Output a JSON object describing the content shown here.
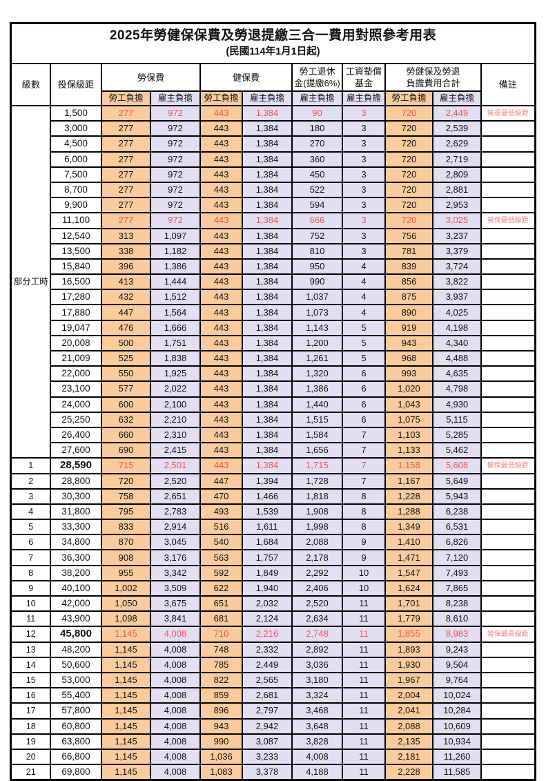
{
  "title": "2025年勞健保保費及勞退提繳三合一費用對照參考用表",
  "subtitle": "(民國114年1月1日起)",
  "colors": {
    "employee_share_fill": "#f9cb9d",
    "employer_share_fill": "#e2dff2",
    "highlight_value_red": "#f5524e",
    "note_red": "#f8817b",
    "border": "#000000"
  },
  "header": {
    "level": "級數",
    "bracket": "投保級距",
    "labor": "勞保費",
    "health": "健保費",
    "pension": "勞工退休\n金(提繳6%)",
    "wage_fund": "工資墊償\n基金",
    "total": "勞健保及勞退\n負擔費用合計",
    "note": "備註",
    "employee_share": "勞工負擔",
    "employer_share": "雇主負擔"
  },
  "part_time_label": "部分工時",
  "part_time_row_span": 23,
  "rows": [
    {
      "level": "",
      "bracket": "1,500",
      "values": [
        "277",
        "972",
        "443",
        "1,384",
        "90",
        "3",
        "720",
        "2,449"
      ],
      "note": "勞退最低級距",
      "red": true,
      "bold": false
    },
    {
      "level": "",
      "bracket": "3,000",
      "values": [
        "277",
        "972",
        "443",
        "1,384",
        "180",
        "3",
        "720",
        "2,539"
      ],
      "note": "",
      "red": false,
      "bold": false
    },
    {
      "level": "",
      "bracket": "4,500",
      "values": [
        "277",
        "972",
        "443",
        "1,384",
        "270",
        "3",
        "720",
        "2,629"
      ],
      "note": "",
      "red": false,
      "bold": false
    },
    {
      "level": "",
      "bracket": "6,000",
      "values": [
        "277",
        "972",
        "443",
        "1,384",
        "360",
        "3",
        "720",
        "2,719"
      ],
      "note": "",
      "red": false,
      "bold": false
    },
    {
      "level": "",
      "bracket": "7,500",
      "values": [
        "277",
        "972",
        "443",
        "1,384",
        "450",
        "3",
        "720",
        "2,809"
      ],
      "note": "",
      "red": false,
      "bold": false
    },
    {
      "level": "",
      "bracket": "8,700",
      "values": [
        "277",
        "972",
        "443",
        "1,384",
        "522",
        "3",
        "720",
        "2,881"
      ],
      "note": "",
      "red": false,
      "bold": false
    },
    {
      "level": "",
      "bracket": "9,900",
      "values": [
        "277",
        "972",
        "443",
        "1,384",
        "594",
        "3",
        "720",
        "2,953"
      ],
      "note": "",
      "red": false,
      "bold": false
    },
    {
      "level": "",
      "bracket": "11,100",
      "values": [
        "277",
        "972",
        "443",
        "1,384",
        "666",
        "3",
        "720",
        "3,025"
      ],
      "note": "勞保最低級距",
      "red": true,
      "bold": false
    },
    {
      "level": "",
      "bracket": "12,540",
      "values": [
        "313",
        "1,097",
        "443",
        "1,384",
        "752",
        "3",
        "756",
        "3,237"
      ],
      "note": "",
      "red": false,
      "bold": false
    },
    {
      "level": "",
      "bracket": "13,500",
      "values": [
        "338",
        "1,182",
        "443",
        "1,384",
        "810",
        "3",
        "781",
        "3,379"
      ],
      "note": "",
      "red": false,
      "bold": false
    },
    {
      "level": "",
      "bracket": "15,840",
      "values": [
        "396",
        "1,386",
        "443",
        "1,384",
        "950",
        "4",
        "839",
        "3,724"
      ],
      "note": "",
      "red": false,
      "bold": false
    },
    {
      "level": "",
      "bracket": "16,500",
      "values": [
        "413",
        "1,444",
        "443",
        "1,384",
        "990",
        "4",
        "856",
        "3,822"
      ],
      "note": "",
      "red": false,
      "bold": false
    },
    {
      "level": "",
      "bracket": "17,280",
      "values": [
        "432",
        "1,512",
        "443",
        "1,384",
        "1,037",
        "4",
        "875",
        "3,937"
      ],
      "note": "",
      "red": false,
      "bold": false
    },
    {
      "level": "",
      "bracket": "17,880",
      "values": [
        "447",
        "1,564",
        "443",
        "1,384",
        "1,073",
        "4",
        "890",
        "4,025"
      ],
      "note": "",
      "red": false,
      "bold": false
    },
    {
      "level": "",
      "bracket": "19,047",
      "values": [
        "476",
        "1,666",
        "443",
        "1,384",
        "1,143",
        "5",
        "919",
        "4,198"
      ],
      "note": "",
      "red": false,
      "bold": false
    },
    {
      "level": "",
      "bracket": "20,008",
      "values": [
        "500",
        "1,751",
        "443",
        "1,384",
        "1,200",
        "5",
        "943",
        "4,340"
      ],
      "note": "",
      "red": false,
      "bold": false
    },
    {
      "level": "",
      "bracket": "21,009",
      "values": [
        "525",
        "1,838",
        "443",
        "1,384",
        "1,261",
        "5",
        "968",
        "4,488"
      ],
      "note": "",
      "red": false,
      "bold": false
    },
    {
      "level": "",
      "bracket": "22,000",
      "values": [
        "550",
        "1,925",
        "443",
        "1,384",
        "1,320",
        "6",
        "993",
        "4,635"
      ],
      "note": "",
      "red": false,
      "bold": false
    },
    {
      "level": "",
      "bracket": "23,100",
      "values": [
        "577",
        "2,022",
        "443",
        "1,384",
        "1,386",
        "6",
        "1,020",
        "4,798"
      ],
      "note": "",
      "red": false,
      "bold": false
    },
    {
      "level": "",
      "bracket": "24,000",
      "values": [
        "600",
        "2,100",
        "443",
        "1,384",
        "1,440",
        "6",
        "1,043",
        "4,930"
      ],
      "note": "",
      "red": false,
      "bold": false
    },
    {
      "level": "",
      "bracket": "25,250",
      "values": [
        "632",
        "2,210",
        "443",
        "1,384",
        "1,515",
        "6",
        "1,075",
        "5,115"
      ],
      "note": "",
      "red": false,
      "bold": false
    },
    {
      "level": "",
      "bracket": "26,400",
      "values": [
        "660",
        "2,310",
        "443",
        "1,384",
        "1,584",
        "7",
        "1,103",
        "5,285"
      ],
      "note": "",
      "red": false,
      "bold": false
    },
    {
      "level": "",
      "bracket": "27,600",
      "values": [
        "690",
        "2,415",
        "443",
        "1,384",
        "1,656",
        "7",
        "1,133",
        "5,462"
      ],
      "note": "",
      "red": false,
      "bold": false
    },
    {
      "level": "1",
      "bracket": "28,590",
      "values": [
        "715",
        "2,501",
        "443",
        "1,384",
        "1,715",
        "7",
        "1,158",
        "5,608"
      ],
      "note": "健保最低級距",
      "red": true,
      "bold": true
    },
    {
      "level": "2",
      "bracket": "28,800",
      "values": [
        "720",
        "2,520",
        "447",
        "1,394",
        "1,728",
        "7",
        "1,167",
        "5,649"
      ],
      "note": "",
      "red": false,
      "bold": false
    },
    {
      "level": "3",
      "bracket": "30,300",
      "values": [
        "758",
        "2,651",
        "470",
        "1,466",
        "1,818",
        "8",
        "1,228",
        "5,943"
      ],
      "note": "",
      "red": false,
      "bold": false
    },
    {
      "level": "4",
      "bracket": "31,800",
      "values": [
        "795",
        "2,783",
        "493",
        "1,539",
        "1,908",
        "8",
        "1,288",
        "6,238"
      ],
      "note": "",
      "red": false,
      "bold": false
    },
    {
      "level": "5",
      "bracket": "33,300",
      "values": [
        "833",
        "2,914",
        "516",
        "1,611",
        "1,998",
        "8",
        "1,349",
        "6,531"
      ],
      "note": "",
      "red": false,
      "bold": false
    },
    {
      "level": "6",
      "bracket": "34,800",
      "values": [
        "870",
        "3,045",
        "540",
        "1,684",
        "2,088",
        "9",
        "1,410",
        "6,826"
      ],
      "note": "",
      "red": false,
      "bold": false
    },
    {
      "level": "7",
      "bracket": "36,300",
      "values": [
        "908",
        "3,176",
        "563",
        "1,757",
        "2,178",
        "9",
        "1,471",
        "7,120"
      ],
      "note": "",
      "red": false,
      "bold": false
    },
    {
      "level": "8",
      "bracket": "38,200",
      "values": [
        "955",
        "3,342",
        "592",
        "1,849",
        "2,292",
        "10",
        "1,547",
        "7,493"
      ],
      "note": "",
      "red": false,
      "bold": false
    },
    {
      "level": "9",
      "bracket": "40,100",
      "values": [
        "1,002",
        "3,509",
        "622",
        "1,940",
        "2,406",
        "10",
        "1,624",
        "7,865"
      ],
      "note": "",
      "red": false,
      "bold": false
    },
    {
      "level": "10",
      "bracket": "42,000",
      "values": [
        "1,050",
        "3,675",
        "651",
        "2,032",
        "2,520",
        "11",
        "1,701",
        "8,238"
      ],
      "note": "",
      "red": false,
      "bold": false
    },
    {
      "level": "11",
      "bracket": "43,900",
      "values": [
        "1,098",
        "3,841",
        "681",
        "2,124",
        "2,634",
        "11",
        "1,779",
        "8,610"
      ],
      "note": "",
      "red": false,
      "bold": false
    },
    {
      "level": "12",
      "bracket": "45,800",
      "values": [
        "1,145",
        "4,008",
        "710",
        "2,216",
        "2,748",
        "11",
        "1,855",
        "8,983"
      ],
      "note": "勞保最高級距",
      "red": true,
      "bold": true
    },
    {
      "level": "13",
      "bracket": "48,200",
      "values": [
        "1,145",
        "4,008",
        "748",
        "2,332",
        "2,892",
        "11",
        "1,893",
        "9,243"
      ],
      "note": "",
      "red": false,
      "bold": false
    },
    {
      "level": "14",
      "bracket": "50,600",
      "values": [
        "1,145",
        "4,008",
        "785",
        "2,449",
        "3,036",
        "11",
        "1,930",
        "9,504"
      ],
      "note": "",
      "red": false,
      "bold": false
    },
    {
      "level": "15",
      "bracket": "53,000",
      "values": [
        "1,145",
        "4,008",
        "822",
        "2,565",
        "3,180",
        "11",
        "1,967",
        "9,764"
      ],
      "note": "",
      "red": false,
      "bold": false
    },
    {
      "level": "16",
      "bracket": "55,400",
      "values": [
        "1,145",
        "4,008",
        "859",
        "2,681",
        "3,324",
        "11",
        "2,004",
        "10,024"
      ],
      "note": "",
      "red": false,
      "bold": false
    },
    {
      "level": "17",
      "bracket": "57,800",
      "values": [
        "1,145",
        "4,008",
        "896",
        "2,797",
        "3,468",
        "11",
        "2,041",
        "10,284"
      ],
      "note": "",
      "red": false,
      "bold": false
    },
    {
      "level": "18",
      "bracket": "60,800",
      "values": [
        "1,145",
        "4,008",
        "943",
        "2,942",
        "3,648",
        "11",
        "2,088",
        "10,609"
      ],
      "note": "",
      "red": false,
      "bold": false
    },
    {
      "level": "19",
      "bracket": "63,800",
      "values": [
        "1,145",
        "4,008",
        "990",
        "3,087",
        "3,828",
        "11",
        "2,135",
        "10,934"
      ],
      "note": "",
      "red": false,
      "bold": false
    },
    {
      "level": "20",
      "bracket": "66,800",
      "values": [
        "1,145",
        "4,008",
        "1,036",
        "3,233",
        "4,008",
        "11",
        "2,181",
        "11,260"
      ],
      "note": "",
      "red": false,
      "bold": false
    },
    {
      "level": "21",
      "bracket": "69,800",
      "values": [
        "1,145",
        "4,008",
        "1,083",
        "3,378",
        "4,188",
        "11",
        "2,228",
        "11,585"
      ],
      "note": "",
      "red": false,
      "bold": false
    }
  ]
}
